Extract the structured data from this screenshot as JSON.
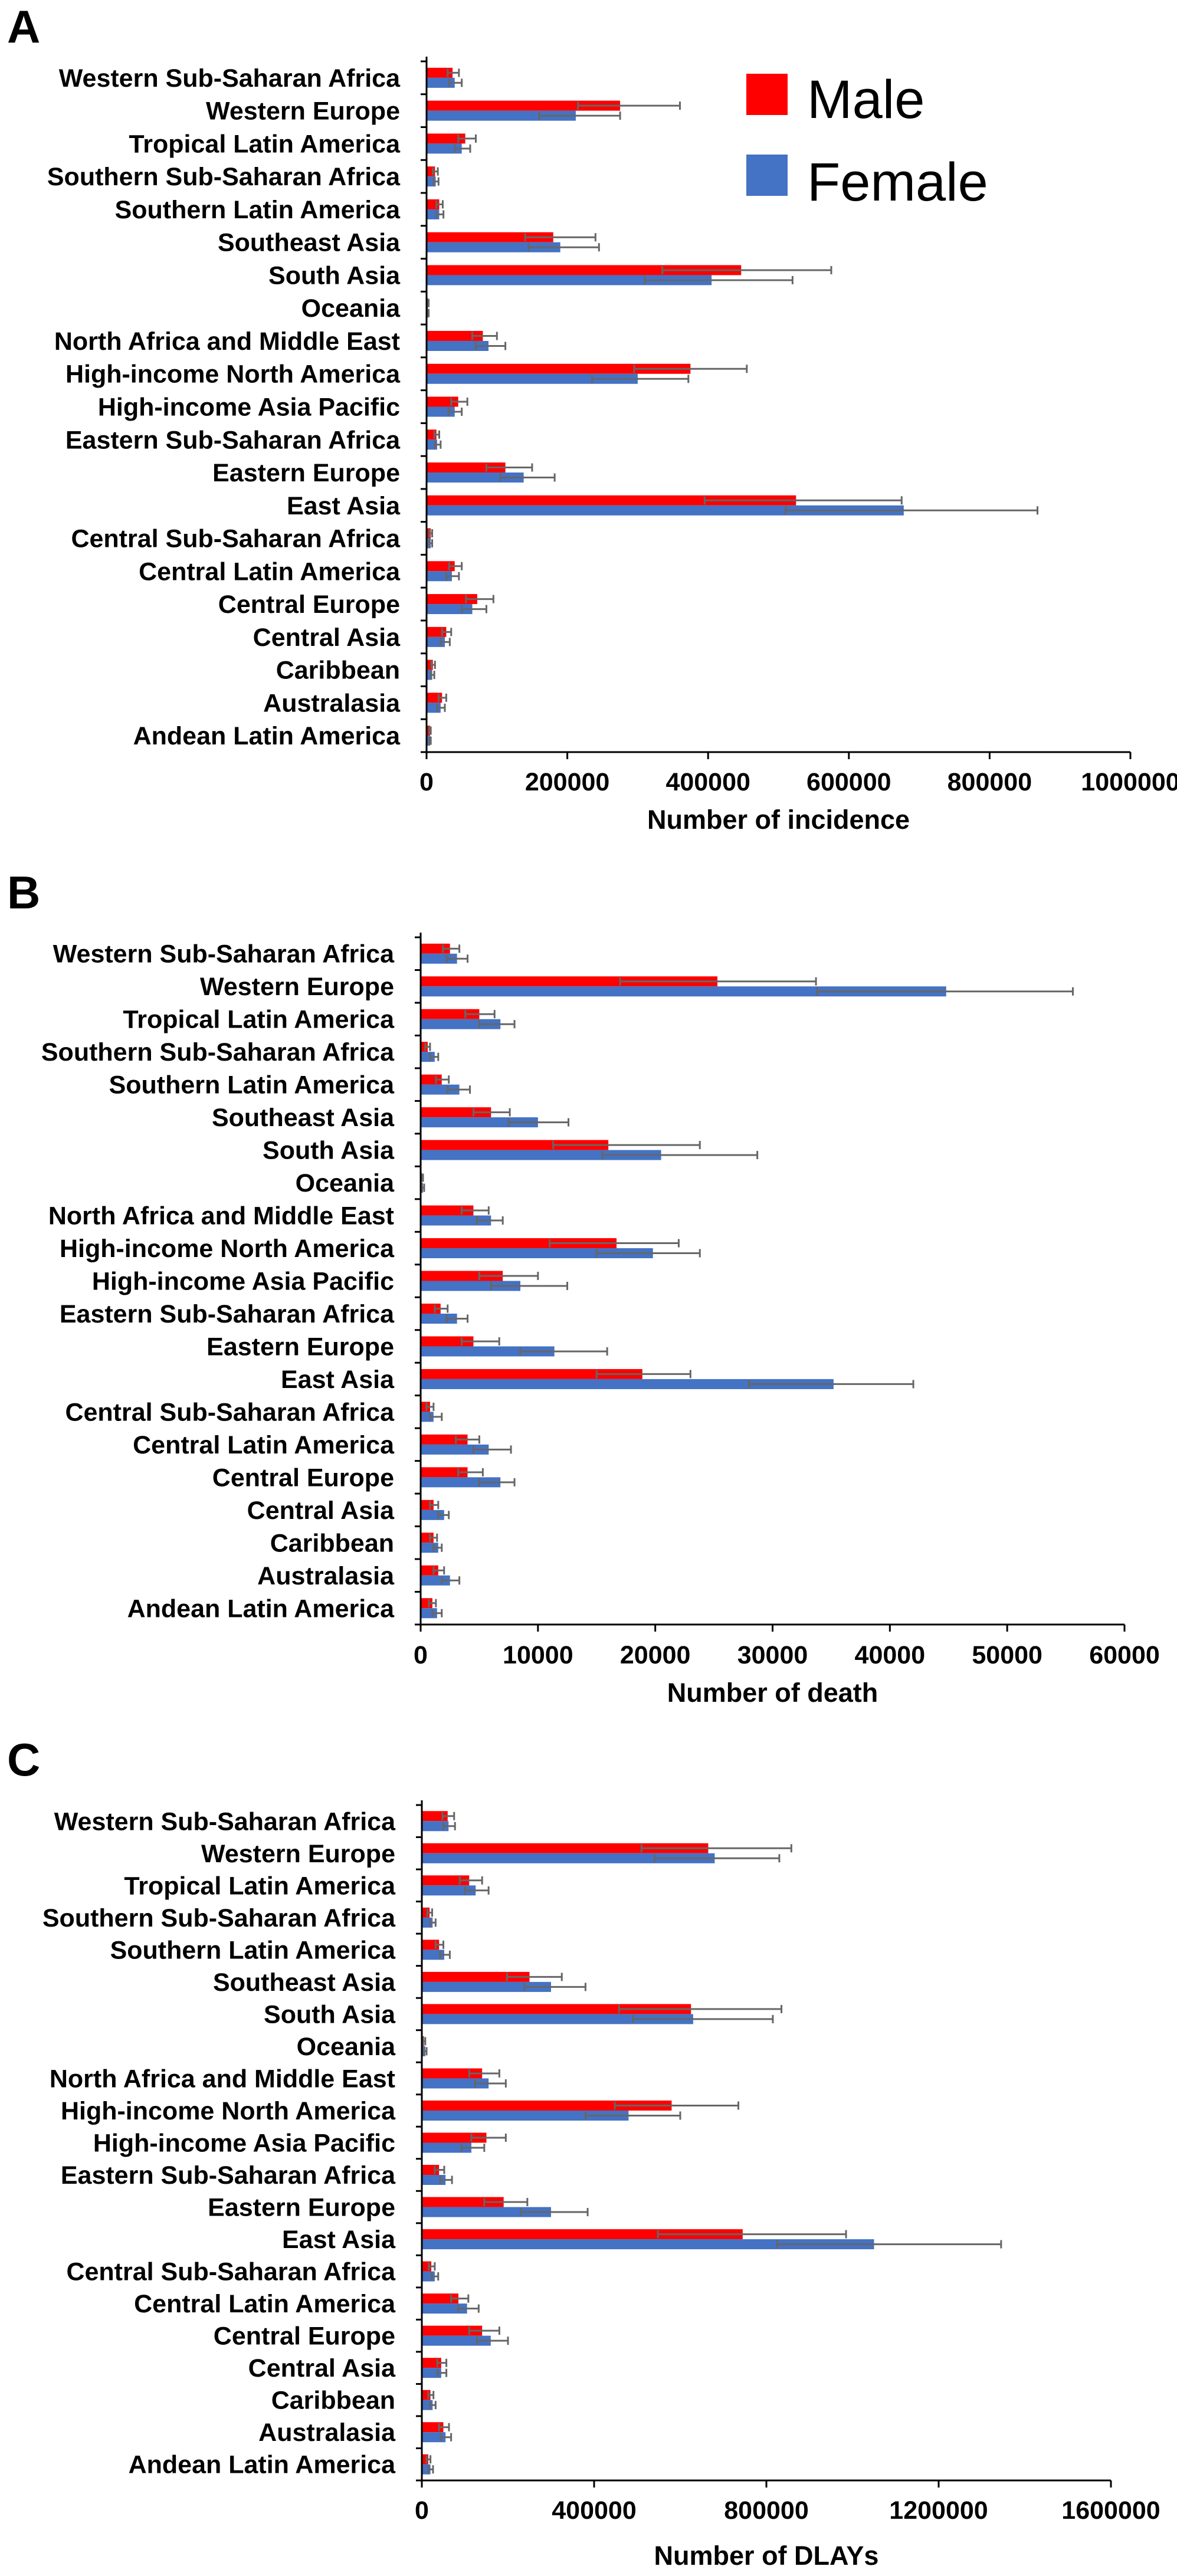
{
  "colors": {
    "male": "#ff0000",
    "female": "#4472c4",
    "error_bar": "#666666",
    "axis": "#000000"
  },
  "legend": {
    "male": "Male",
    "female": "Female",
    "position": "top-right of panel A"
  },
  "chart_data": [
    {
      "type": "bar",
      "orientation": "horizontal",
      "panel_label": "A",
      "xlabel": "Number of incidence",
      "xlim": [
        0,
        1000000
      ],
      "tick_labels": [
        "0",
        "200000",
        "400000",
        "600000",
        "800000",
        "1000000"
      ],
      "categories": [
        "Western Sub-Saharan Africa",
        "Western Europe",
        "Tropical Latin America",
        "Southern Sub-Saharan Africa",
        "Southern Latin America",
        "Southeast Asia",
        "South Asia",
        "Oceania",
        "North Africa and Middle East",
        "High-income North America",
        "High-income Asia Pacific",
        "Eastern Sub-Saharan Africa",
        "Eastern Europe",
        "East Asia",
        "Central Sub-Saharan Africa",
        "Central Latin America",
        "Central Europe",
        "Central Asia",
        "Caribbean",
        "Australasia",
        "Andean Latin America"
      ],
      "series": [
        {
          "name": "Male",
          "values": [
            37000,
            275000,
            55000,
            12000,
            18000,
            180000,
            447000,
            2000,
            80000,
            375000,
            45000,
            14000,
            112000,
            525000,
            6000,
            40000,
            72000,
            28000,
            9000,
            22000,
            5000
          ],
          "err_low": [
            30000,
            215000,
            45000,
            9000,
            14000,
            140000,
            335000,
            1000,
            65000,
            295000,
            35000,
            11000,
            85000,
            395000,
            4000,
            32000,
            56000,
            22000,
            7000,
            17000,
            4000
          ],
          "err_high": [
            46000,
            360000,
            70000,
            16000,
            23000,
            240000,
            575000,
            3000,
            100000,
            455000,
            58000,
            18000,
            150000,
            675000,
            8000,
            50000,
            95000,
            35000,
            12000,
            28000,
            6000
          ]
        },
        {
          "name": "Female",
          "values": [
            40000,
            212000,
            50000,
            13000,
            18000,
            190000,
            405000,
            2000,
            88000,
            300000,
            40000,
            15000,
            138000,
            678000,
            6000,
            36000,
            65000,
            26000,
            8000,
            20000,
            5000
          ],
          "err_low": [
            32000,
            160000,
            40000,
            10000,
            14000,
            145000,
            310000,
            1000,
            70000,
            235000,
            31000,
            12000,
            105000,
            510000,
            4000,
            28000,
            50000,
            20000,
            6000,
            15000,
            4000
          ],
          "err_high": [
            50000,
            275000,
            62000,
            17000,
            24000,
            245000,
            520000,
            3000,
            112000,
            372000,
            50000,
            20000,
            182000,
            868000,
            8000,
            46000,
            85000,
            33000,
            11000,
            26000,
            6000
          ]
        }
      ]
    },
    {
      "type": "bar",
      "orientation": "horizontal",
      "panel_label": "B",
      "xlabel": "Number of death",
      "xlim": [
        0,
        60000
      ],
      "tick_labels": [
        "0",
        "10000",
        "20000",
        "30000",
        "40000",
        "50000",
        "60000"
      ],
      "categories": [
        "Western Sub-Saharan Africa",
        "Western Europe",
        "Tropical Latin America",
        "Southern Sub-Saharan Africa",
        "Southern Latin America",
        "Southeast Asia",
        "South Asia",
        "Oceania",
        "North Africa and Middle East",
        "High-income North America",
        "High-income Asia Pacific",
        "Eastern Sub-Saharan Africa",
        "Eastern Europe",
        "East Asia",
        "Central Sub-Saharan Africa",
        "Central Latin America",
        "Central Europe",
        "Central Asia",
        "Caribbean",
        "Australasia",
        "Andean Latin America"
      ],
      "series": [
        {
          "name": "Male",
          "values": [
            2500,
            25300,
            5000,
            600,
            1800,
            6000,
            16000,
            100,
            4500,
            16700,
            7000,
            1700,
            4500,
            18900,
            800,
            4000,
            4000,
            1100,
            1100,
            1500,
            1000
          ],
          "err_low": [
            1900,
            17000,
            3800,
            400,
            1300,
            4500,
            11300,
            50,
            3500,
            11000,
            5000,
            1200,
            3500,
            15000,
            500,
            3000,
            3200,
            800,
            800,
            1100,
            700
          ],
          "err_high": [
            3300,
            33700,
            6300,
            800,
            2400,
            7600,
            23800,
            200,
            5800,
            22000,
            10000,
            2300,
            6700,
            23000,
            1100,
            5000,
            5300,
            1500,
            1400,
            2000,
            1300
          ]
        },
        {
          "name": "Female",
          "values": [
            3100,
            44800,
            6800,
            1200,
            3300,
            10000,
            20500,
            200,
            6000,
            19800,
            8500,
            3100,
            11400,
            35200,
            1100,
            5800,
            6800,
            2000,
            1500,
            2500,
            1400
          ],
          "err_low": [
            2200,
            33800,
            5000,
            800,
            2300,
            7500,
            15500,
            100,
            4800,
            15000,
            6000,
            2200,
            8500,
            28000,
            800,
            4500,
            5000,
            1500,
            1100,
            1800,
            1000
          ],
          "err_high": [
            4000,
            55600,
            8000,
            1500,
            4200,
            12600,
            28700,
            300,
            7000,
            23800,
            12500,
            4000,
            15900,
            42000,
            1800,
            7700,
            8000,
            2400,
            1800,
            3300,
            1800
          ]
        }
      ]
    },
    {
      "type": "bar",
      "orientation": "horizontal",
      "panel_label": "C",
      "xlabel": "Number of DLAYs",
      "xlim": [
        0,
        1600000
      ],
      "tick_labels": [
        "0",
        "400000",
        "800000",
        "1200000",
        "1600000"
      ],
      "categories": [
        "Western Sub-Saharan Africa",
        "Western Europe",
        "Tropical Latin America",
        "Southern Sub-Saharan Africa",
        "Southern Latin America",
        "Southeast Asia",
        "South Asia",
        "Oceania",
        "North Africa and Middle East",
        "High-income North America",
        "High-income Asia Pacific",
        "Eastern Sub-Saharan Africa",
        "Eastern Europe",
        "East Asia",
        "Central Sub-Saharan Africa",
        "Central Latin America",
        "Central Europe",
        "Central Asia",
        "Caribbean",
        "Australasia",
        "Andean Latin America"
      ],
      "series": [
        {
          "name": "Male",
          "values": [
            60000,
            665000,
            110000,
            18000,
            40000,
            250000,
            625000,
            5000,
            140000,
            580000,
            150000,
            40000,
            190000,
            745000,
            22000,
            85000,
            140000,
            45000,
            20000,
            50000,
            15000
          ],
          "err_low": [
            48000,
            510000,
            88000,
            13000,
            32000,
            198000,
            458000,
            3000,
            110000,
            448000,
            115000,
            30000,
            145000,
            548000,
            16000,
            68000,
            110000,
            36000,
            15000,
            40000,
            11000
          ],
          "err_high": [
            75000,
            858000,
            140000,
            24000,
            50000,
            325000,
            835000,
            8000,
            180000,
            735000,
            195000,
            52000,
            245000,
            985000,
            30000,
            108000,
            180000,
            57000,
            27000,
            63000,
            20000
          ]
        },
        {
          "name": "Female",
          "values": [
            62000,
            680000,
            125000,
            25000,
            52000,
            300000,
            630000,
            8000,
            155000,
            480000,
            115000,
            55000,
            300000,
            1050000,
            30000,
            105000,
            160000,
            45000,
            25000,
            55000,
            20000
          ],
          "err_low": [
            50000,
            540000,
            100000,
            19000,
            42000,
            238000,
            490000,
            5000,
            124000,
            380000,
            92000,
            43000,
            230000,
            825000,
            23000,
            84000,
            128000,
            36000,
            19000,
            44000,
            15000
          ],
          "err_high": [
            77000,
            830000,
            155000,
            32000,
            65000,
            380000,
            815000,
            11000,
            195000,
            600000,
            145000,
            70000,
            385000,
            1345000,
            38000,
            132000,
            200000,
            57000,
            32000,
            68000,
            26000
          ]
        }
      ]
    }
  ]
}
